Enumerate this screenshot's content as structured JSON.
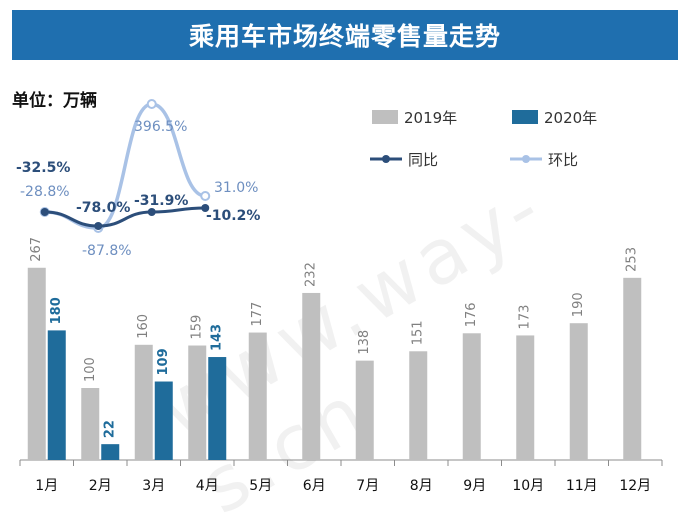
{
  "header": {
    "title": "乘用车市场终端零售量走势"
  },
  "unit_label": "单位：万辆",
  "watermark": "www.way-s.cn",
  "colors": {
    "bar2019": "#bfbfbf",
    "bar2020": "#1f6c9b",
    "yoy": "#2c4e7a",
    "mom": "#a9c2e6",
    "title_bg": "#1f6faf"
  },
  "chart_data": {
    "type": "bar",
    "categories": [
      "1月",
      "2月",
      "3月",
      "4月",
      "5月",
      "6月",
      "7月",
      "8月",
      "9月",
      "10月",
      "11月",
      "12月"
    ],
    "series": [
      {
        "name": "2019年",
        "values": [
          267,
          100,
          160,
          159,
          177,
          232,
          138,
          151,
          176,
          173,
          190,
          253
        ]
      },
      {
        "name": "2020年",
        "values": [
          180,
          22,
          109,
          143,
          null,
          null,
          null,
          null,
          null,
          null,
          null,
          null
        ]
      }
    ],
    "lines": [
      {
        "name": "同比",
        "values": [
          "-32.5%",
          "-78.0%",
          "-31.9%",
          "-10.2%"
        ],
        "numeric": [
          -32.5,
          -78.0,
          -31.9,
          -10.2
        ]
      },
      {
        "name": "环比",
        "values": [
          "-28.8%",
          "-87.8%",
          "396.5%",
          "31.0%"
        ],
        "numeric": [
          -28.8,
          -87.8,
          396.5,
          31.0
        ]
      }
    ],
    "ylim": [
      0,
      290
    ],
    "legend_placement": "top-right",
    "grid": false
  }
}
